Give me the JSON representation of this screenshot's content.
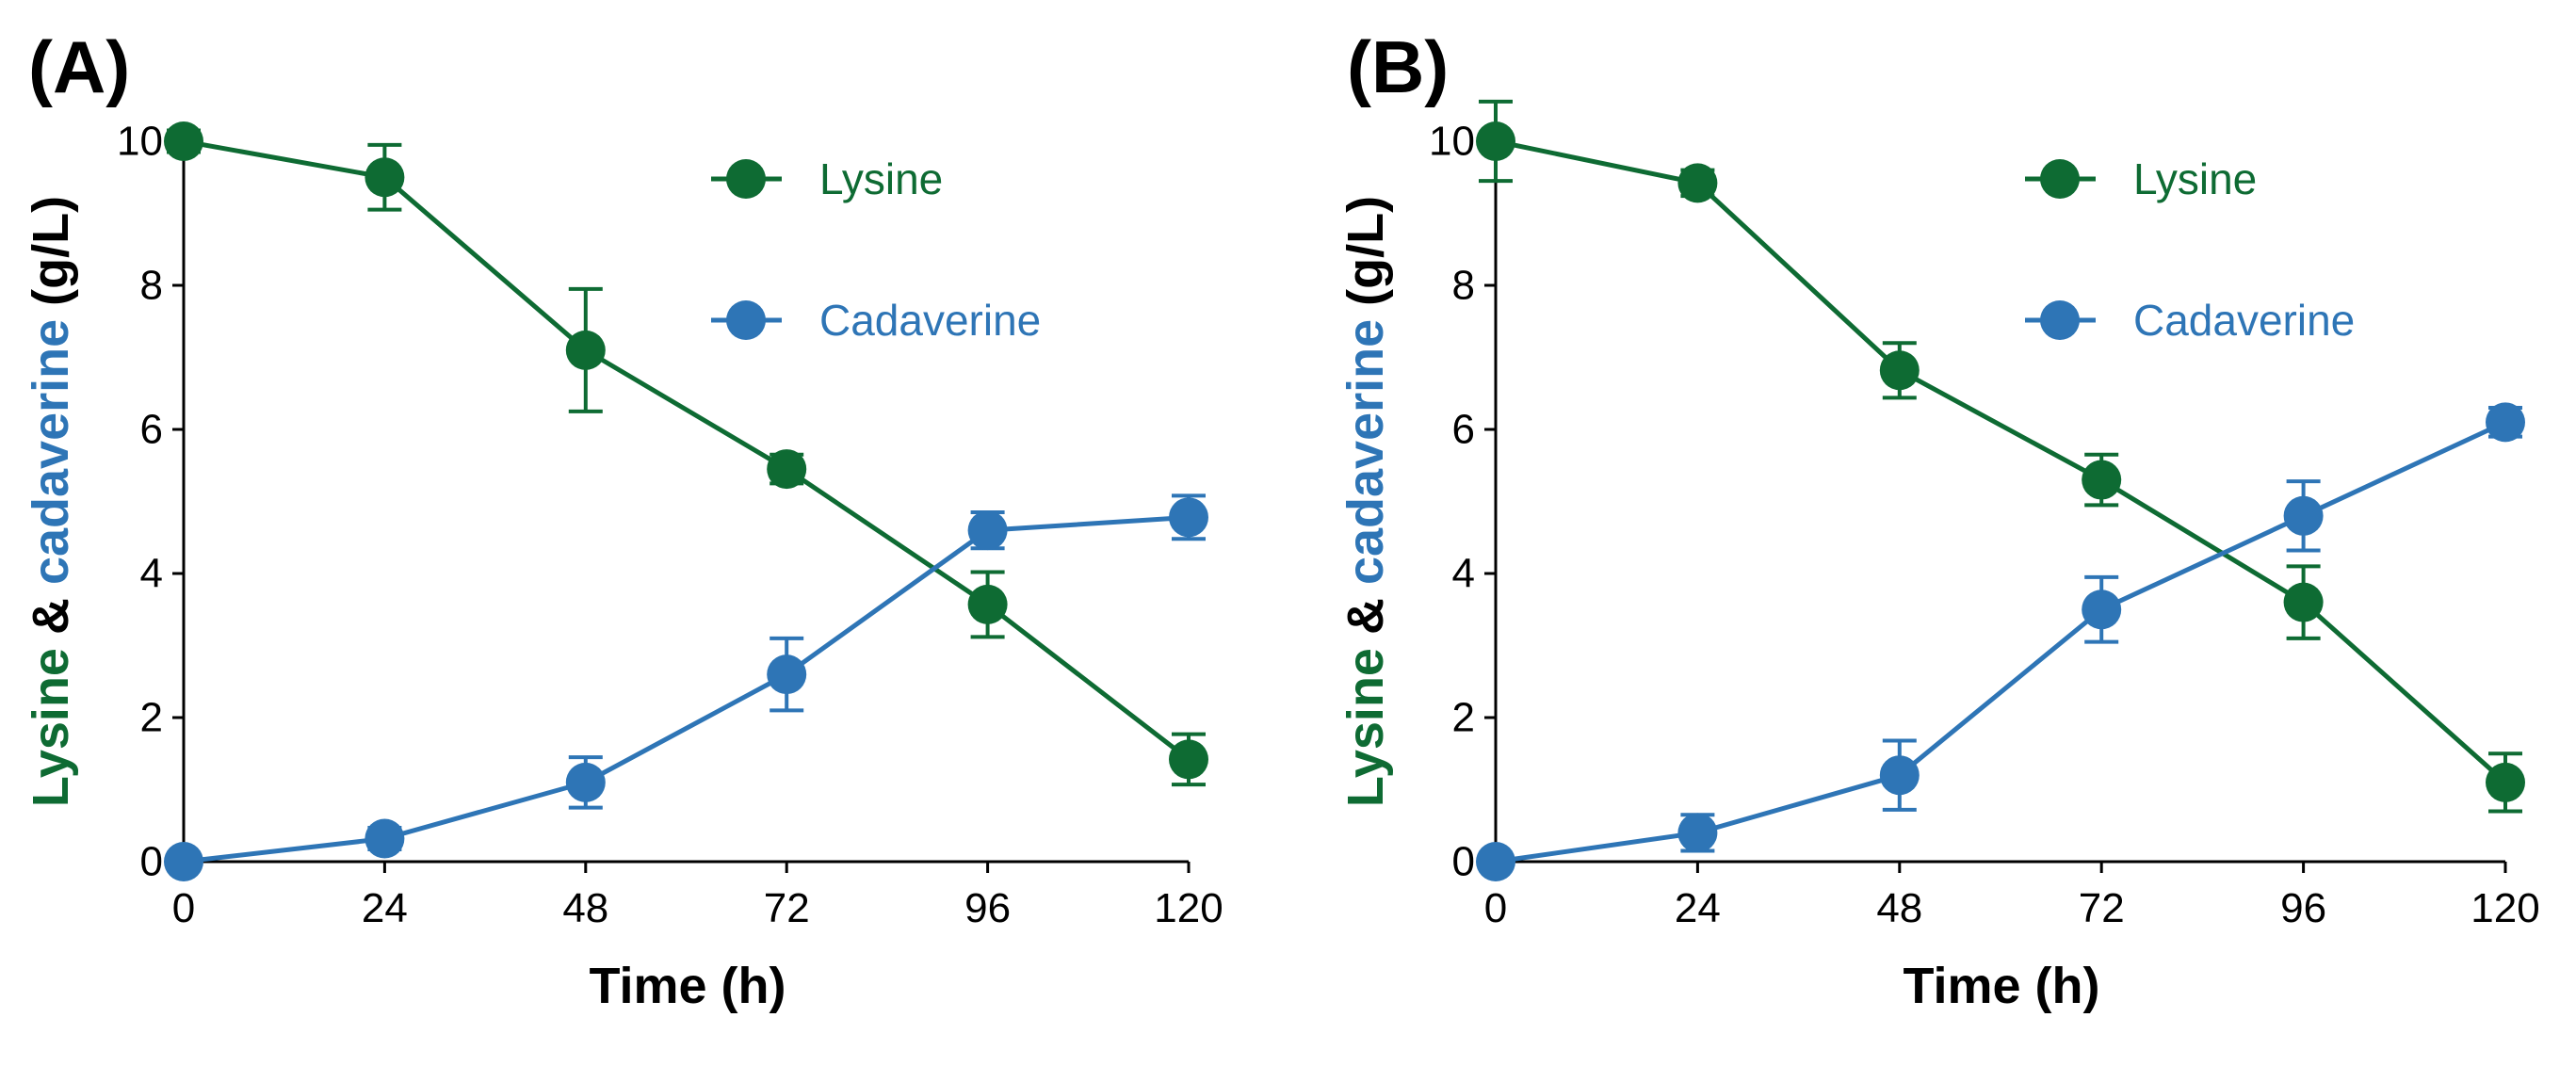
{
  "colors": {
    "lysine": "#0E6B33",
    "cadaverine": "#2E75B6",
    "axis": "#000000"
  },
  "chart_data": [
    {
      "type": "line",
      "panel_label": "(A)",
      "x": [
        0,
        24,
        48,
        72,
        96,
        120
      ],
      "xticks": [
        "0",
        "24",
        "48",
        "72",
        "96",
        "120"
      ],
      "yticks": [
        "0",
        "2",
        "4",
        "6",
        "8",
        "10"
      ],
      "xlim": [
        0,
        120
      ],
      "ylim": [
        0,
        10
      ],
      "xlabel": "Time (h)",
      "ylabel": {
        "part1": "Lysine",
        "part2": "&",
        "part3": "cadaverine",
        "part4": "(g/L)"
      },
      "grid": false,
      "legend": "top-right",
      "series": [
        {
          "name": "Lysine",
          "color": "#0E6B33",
          "values": [
            10.0,
            9.5,
            7.1,
            5.45,
            3.57,
            1.42
          ],
          "errors": [
            0.15,
            0.45,
            0.85,
            0.2,
            0.45,
            0.35
          ]
        },
        {
          "name": "Cadaverine",
          "color": "#2E75B6",
          "values": [
            0.0,
            0.32,
            1.1,
            2.6,
            4.6,
            4.78
          ],
          "errors": [
            0.05,
            0.15,
            0.35,
            0.5,
            0.25,
            0.3
          ]
        }
      ]
    },
    {
      "type": "line",
      "panel_label": "(B)",
      "x": [
        0,
        24,
        48,
        72,
        96,
        120
      ],
      "xticks": [
        "0",
        "24",
        "48",
        "72",
        "96",
        "120"
      ],
      "yticks": [
        "0",
        "2",
        "4",
        "6",
        "8",
        "10"
      ],
      "xlim": [
        0,
        120
      ],
      "ylim": [
        0,
        10
      ],
      "xlabel": "Time (h)",
      "ylabel": {
        "part1": "Lysine",
        "part2": "&",
        "part3": "cadaverine",
        "part4": "(g/L)"
      },
      "grid": false,
      "legend": "top-right",
      "series": [
        {
          "name": "Lysine",
          "color": "#0E6B33",
          "values": [
            10.0,
            9.42,
            6.82,
            5.3,
            3.6,
            1.1
          ],
          "errors": [
            0.55,
            0.18,
            0.38,
            0.35,
            0.5,
            0.4
          ]
        },
        {
          "name": "Cadaverine",
          "color": "#2E75B6",
          "values": [
            0.0,
            0.4,
            1.2,
            3.5,
            4.8,
            6.1
          ],
          "errors": [
            0.05,
            0.25,
            0.48,
            0.45,
            0.48,
            0.2
          ]
        }
      ]
    }
  ]
}
